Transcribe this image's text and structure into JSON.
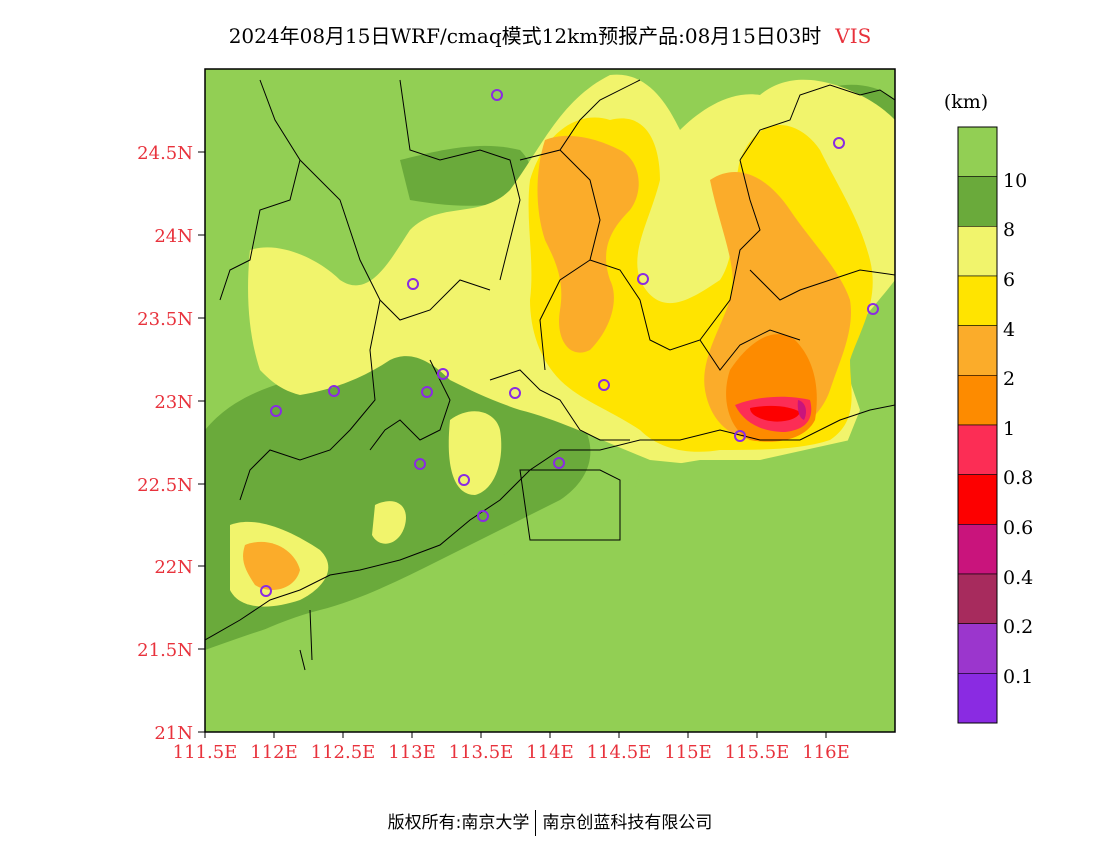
{
  "title": {
    "main": "2024年08月15日WRF/cmaq模式12km预报产品:08月15日03时",
    "variable": "VIS"
  },
  "map": {
    "lat_ticks": [
      "21N",
      "21.5N",
      "22N",
      "22.5N",
      "23N",
      "23.5N",
      "24N",
      "24.5N"
    ],
    "lon_ticks": [
      "111.5E",
      "112E",
      "112.5E",
      "113E",
      "113.5E",
      "114E",
      "114.5E",
      "115E",
      "115.5E",
      "116E"
    ]
  },
  "colorbar": {
    "unit": "(km)",
    "labels": [
      "10",
      "8",
      "6",
      "4",
      "2",
      "1",
      "0.8",
      "0.6",
      "0.4",
      "0.2",
      "0.1"
    ],
    "colors": [
      "#92cf54",
      "#6aaa3b",
      "#f1f46c",
      "#ffe400",
      "#fbac2a",
      "#fd8b00",
      "#fc2d55",
      "#fd0000",
      "#c9147c",
      "#a72b5d",
      "#9b36cd",
      "#8a2be2"
    ]
  },
  "footer": {
    "left": "版权所有:南京大学",
    "right": "南京创蓝科技有限公司"
  }
}
